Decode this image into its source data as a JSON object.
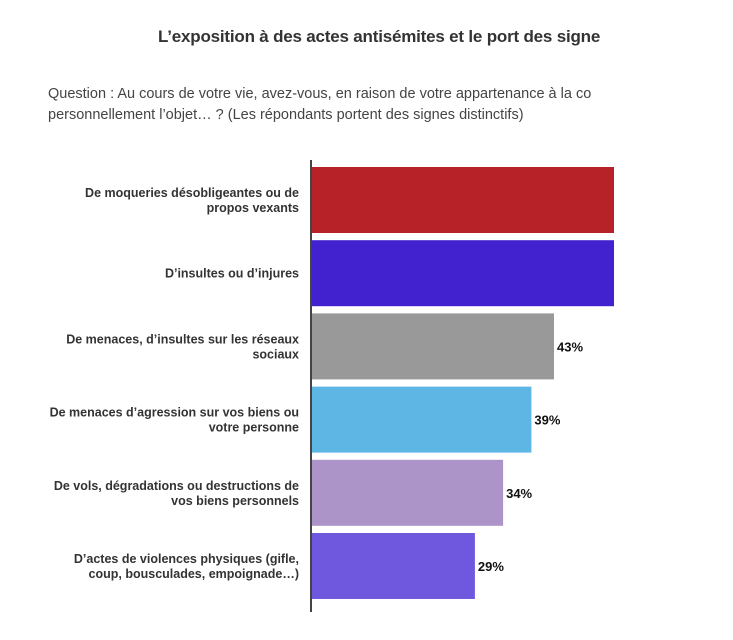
{
  "chart_data": {
    "type": "bar",
    "orientation": "horizontal",
    "title": "L’exposition à des actes antisémites et le port des signe",
    "subtitle_lines": [
      "Question : Au cours de votre vie, avez-vous, en raison de votre appartenance à la co",
      "personnellement l’objet… ? (Les répondants portent des signes distinctifs)"
    ],
    "categories": [
      [
        "De moqueries désobligeantes ou de",
        "propos vexants"
      ],
      [
        "D’insultes ou d’injures"
      ],
      [
        "De menaces, d’insultes sur les réseaux",
        "sociaux"
      ],
      [
        "De menaces d’agression sur vos biens ou",
        "votre personne"
      ],
      [
        "De vols, dégradations ou destructions de",
        "vos biens personnels"
      ],
      [
        "D’actes de violences physiques (gifle,",
        "coup, bousculades, empoignade…)"
      ]
    ],
    "values": [
      null,
      null,
      43,
      39,
      34,
      29
    ],
    "data_labels": [
      "",
      "",
      "43%",
      "39%",
      "34%",
      "29%"
    ],
    "colors": [
      "#b72228",
      "#4222cf",
      "#999999",
      "#5eb6e4",
      "#ac94c9",
      "#6f57de"
    ],
    "legend": "none",
    "grid": false
  }
}
